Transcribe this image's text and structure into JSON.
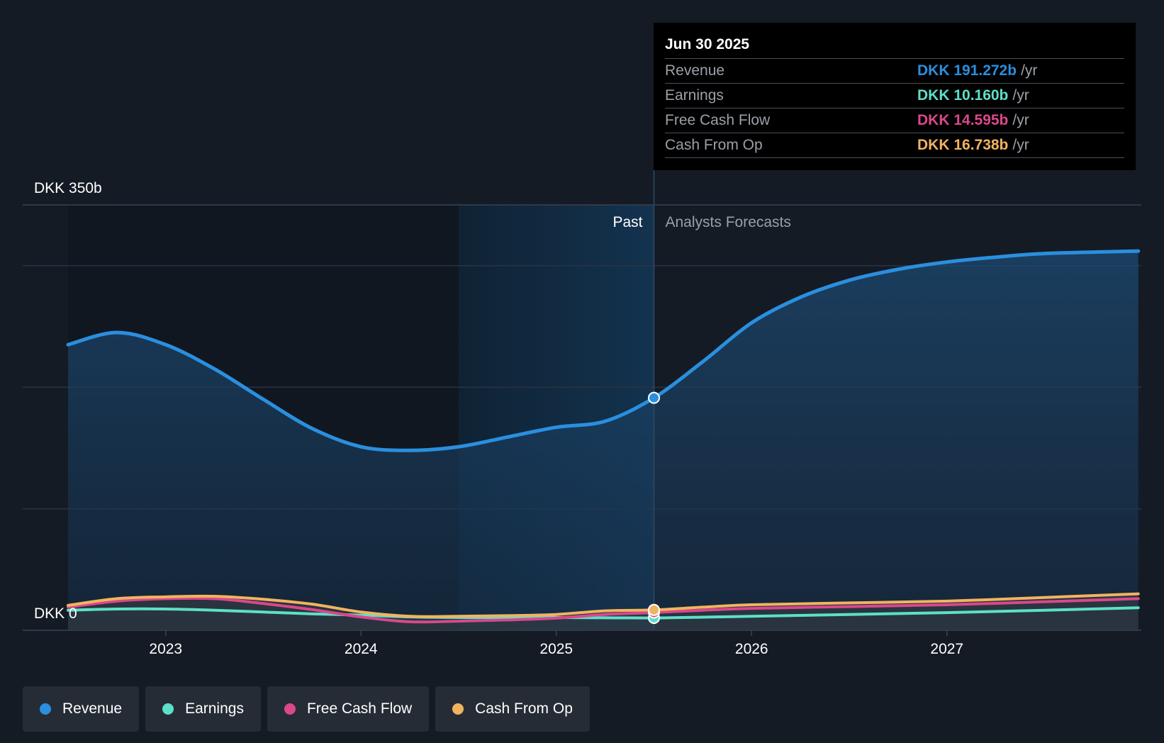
{
  "chart_data": {
    "type": "area",
    "currency": "DKK",
    "y_axis": {
      "top_label": "DKK 350b",
      "bottom_label": "DKK 0",
      "ylim": [
        0,
        350
      ],
      "unit": "b"
    },
    "x_axis": {
      "ticks": [
        "2023",
        "2024",
        "2025",
        "2026",
        "2027"
      ],
      "xlim": [
        2022.5,
        2027.98
      ]
    },
    "regions": {
      "past_label": "Past",
      "forecast_label": "Analysts Forecasts",
      "past_start": 2024.5,
      "divider": 2025.5
    },
    "series": [
      {
        "name": "Revenue",
        "color": "#2a8fdf",
        "fill": true,
        "points": [
          [
            2022.5,
            235
          ],
          [
            2022.75,
            245
          ],
          [
            2023.0,
            235
          ],
          [
            2023.25,
            215
          ],
          [
            2023.5,
            190
          ],
          [
            2023.75,
            166
          ],
          [
            2024.0,
            151
          ],
          [
            2024.25,
            148
          ],
          [
            2024.5,
            151
          ],
          [
            2024.75,
            159
          ],
          [
            2025.0,
            167
          ],
          [
            2025.25,
            172
          ],
          [
            2025.5,
            191.272
          ],
          [
            2025.75,
            221
          ],
          [
            2026.0,
            253
          ],
          [
            2026.25,
            274
          ],
          [
            2026.5,
            288
          ],
          [
            2026.75,
            297
          ],
          [
            2027.0,
            303
          ],
          [
            2027.25,
            307
          ],
          [
            2027.5,
            310
          ],
          [
            2027.98,
            312
          ]
        ]
      },
      {
        "name": "Earnings",
        "color": "#5de0c8",
        "points": [
          [
            2022.5,
            16.5
          ],
          [
            2022.75,
            17.5
          ],
          [
            2023.0,
            17.5
          ],
          [
            2023.25,
            16.5
          ],
          [
            2023.5,
            15
          ],
          [
            2023.75,
            13.5
          ],
          [
            2024.0,
            12.5
          ],
          [
            2024.25,
            11
          ],
          [
            2024.5,
            10.5
          ],
          [
            2024.75,
            10.5
          ],
          [
            2025.0,
            10.5
          ],
          [
            2025.25,
            10.3
          ],
          [
            2025.5,
            10.16
          ],
          [
            2025.75,
            10.8
          ],
          [
            2026.0,
            11.5
          ],
          [
            2026.5,
            13
          ],
          [
            2027.0,
            14.5
          ],
          [
            2027.5,
            16.5
          ],
          [
            2027.98,
            18.5
          ]
        ]
      },
      {
        "name": "Free Cash Flow",
        "color": "#d9488b",
        "points": [
          [
            2022.5,
            19
          ],
          [
            2022.75,
            24
          ],
          [
            2023.0,
            26
          ],
          [
            2023.25,
            26
          ],
          [
            2023.5,
            22
          ],
          [
            2023.75,
            17
          ],
          [
            2024.0,
            11
          ],
          [
            2024.25,
            7
          ],
          [
            2024.5,
            7.5
          ],
          [
            2024.75,
            8.5
          ],
          [
            2025.0,
            10
          ],
          [
            2025.25,
            13
          ],
          [
            2025.5,
            14.595
          ],
          [
            2025.75,
            16.5
          ],
          [
            2026.0,
            18
          ],
          [
            2026.5,
            19.5
          ],
          [
            2027.0,
            21
          ],
          [
            2027.5,
            23.5
          ],
          [
            2027.98,
            26
          ]
        ]
      },
      {
        "name": "Cash From Op",
        "color": "#f2b35f",
        "points": [
          [
            2022.5,
            20.5
          ],
          [
            2022.75,
            26
          ],
          [
            2023.0,
            27.5
          ],
          [
            2023.25,
            28
          ],
          [
            2023.5,
            25.5
          ],
          [
            2023.75,
            21.5
          ],
          [
            2024.0,
            15
          ],
          [
            2024.25,
            11.5
          ],
          [
            2024.5,
            11.5
          ],
          [
            2024.75,
            12
          ],
          [
            2025.0,
            13
          ],
          [
            2025.25,
            16
          ],
          [
            2025.5,
            16.738
          ],
          [
            2025.75,
            19
          ],
          [
            2026.0,
            21
          ],
          [
            2026.5,
            22.5
          ],
          [
            2027.0,
            24
          ],
          [
            2027.5,
            27
          ],
          [
            2027.98,
            30
          ]
        ]
      }
    ],
    "highlight": {
      "x": 2025.5
    }
  },
  "tooltip": {
    "date": "Jun 30 2025",
    "rows": [
      {
        "name": "Revenue",
        "value": "DKK 191.272b",
        "unit": "/yr",
        "color": "#2a8fdf"
      },
      {
        "name": "Earnings",
        "value": "DKK 10.160b",
        "unit": "/yr",
        "color": "#5de0c8"
      },
      {
        "name": "Free Cash Flow",
        "value": "DKK 14.595b",
        "unit": "/yr",
        "color": "#d9488b"
      },
      {
        "name": "Cash From Op",
        "value": "DKK 16.738b",
        "unit": "/yr",
        "color": "#f2b35f"
      }
    ]
  },
  "legend": [
    {
      "label": "Revenue",
      "color": "#2a8fdf"
    },
    {
      "label": "Earnings",
      "color": "#5de0c8"
    },
    {
      "label": "Free Cash Flow",
      "color": "#d9488b"
    },
    {
      "label": "Cash From Op",
      "color": "#f2b35f"
    }
  ]
}
